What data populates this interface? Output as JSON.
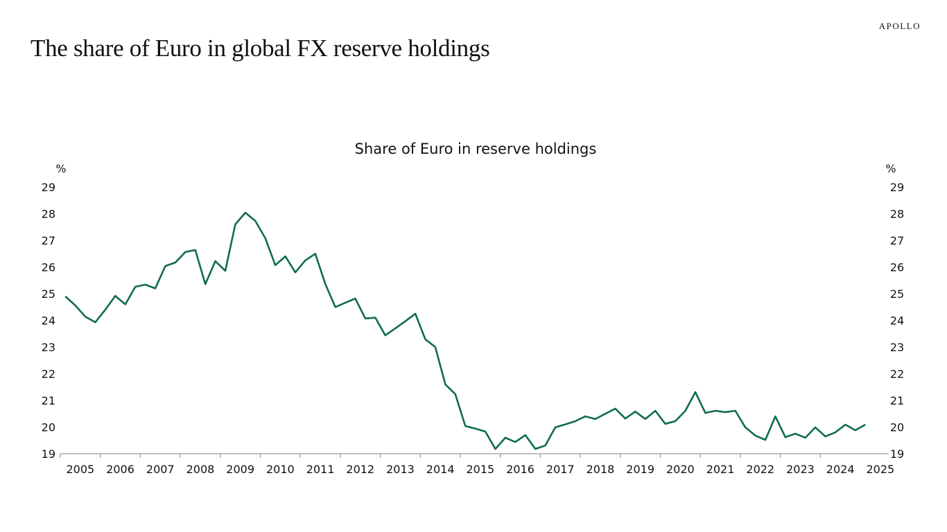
{
  "header": {
    "logo": "APOLLO",
    "title": "The share of Euro in global FX reserve holdings"
  },
  "chart_data": {
    "type": "line",
    "title": "Share of Euro in reserve holdings",
    "ylabel_left": "%",
    "ylabel_right": "%",
    "ylim": [
      19,
      29
    ],
    "yticks": [
      19,
      20,
      21,
      22,
      23,
      24,
      25,
      26,
      27,
      28,
      29
    ],
    "xticks": [
      "2005",
      "2006",
      "2007",
      "2008",
      "2009",
      "2010",
      "2011",
      "2012",
      "2013",
      "2014",
      "2015",
      "2016",
      "2017",
      "2018",
      "2019",
      "2020",
      "2021",
      "2022",
      "2023",
      "2024",
      "2025"
    ],
    "x_start": "2005Q1",
    "frequency": "quarterly",
    "color": "#0e6b4f",
    "grid": false,
    "series": [
      {
        "values": [
          24.9,
          24.56,
          24.14,
          23.93,
          24.4,
          24.92,
          24.6,
          25.26,
          25.34,
          25.2,
          26.04,
          26.17,
          26.56,
          26.64,
          25.36,
          26.22,
          25.86,
          27.6,
          28.04,
          27.73,
          27.08,
          26.07,
          26.4,
          25.8,
          26.25,
          26.5,
          25.36,
          24.5,
          24.66,
          24.82,
          24.07,
          24.1,
          23.44,
          23.7,
          23.97,
          24.25,
          23.29,
          23.0,
          21.6,
          21.23,
          20.04,
          19.94,
          19.83,
          19.18,
          19.6,
          19.44,
          19.7,
          19.18,
          19.31,
          19.99,
          20.1,
          20.22,
          20.4,
          20.3,
          20.5,
          20.69,
          20.32,
          20.58,
          20.3,
          20.61,
          20.12,
          20.22,
          20.61,
          21.31,
          20.53,
          20.61,
          20.56,
          20.61,
          19.99,
          19.68,
          19.52,
          20.4,
          19.62,
          19.75,
          19.6,
          19.99,
          19.65,
          19.8,
          20.09,
          19.88,
          20.09
        ]
      }
    ]
  }
}
